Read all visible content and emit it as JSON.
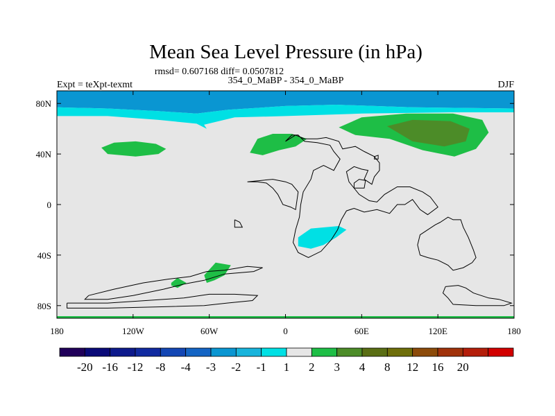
{
  "chart_data": {
    "type": "heatmap",
    "title": "Mean Sea Level Pressure (in hPa)",
    "stats_line": "rmsd= 0.607168 diff= 0.0507812",
    "subtitle_center": "354_0_MaBP - 354_0_MaBP",
    "subtitle_left": "Expt = teXpt-texmt",
    "subtitle_right": "DJF",
    "xlim": [
      -180,
      180
    ],
    "ylim": [
      -90,
      90
    ],
    "x_ticks": [
      {
        "value": -180,
        "label": "180"
      },
      {
        "value": -120,
        "label": "120W"
      },
      {
        "value": -60,
        "label": "60W"
      },
      {
        "value": 0,
        "label": "0"
      },
      {
        "value": 60,
        "label": "60E"
      },
      {
        "value": 120,
        "label": "120E"
      },
      {
        "value": 180,
        "label": "180"
      }
    ],
    "y_ticks": [
      {
        "value": 80,
        "label": "80N"
      },
      {
        "value": 40,
        "label": "40N"
      },
      {
        "value": 0,
        "label": "0"
      },
      {
        "value": -40,
        "label": "40S"
      },
      {
        "value": -80,
        "label": "80S"
      }
    ],
    "colorbar": {
      "colors": [
        "#20005a",
        "#0a0a78",
        "#0d1a8c",
        "#102aa0",
        "#1346b4",
        "#1464c4",
        "#0a96d2",
        "#18b4dc",
        "#00e0e4",
        "#e6e6e6",
        "#1ebe46",
        "#4c8c28",
        "#5a6e14",
        "#6e6e0a",
        "#8c4b0a",
        "#a0320a",
        "#b41e0a",
        "#d20000"
      ],
      "labels": [
        "-20",
        "-16",
        "-12",
        "-8",
        "-4",
        "-3",
        "-2",
        "-1",
        "1",
        "2",
        "3",
        "4",
        "8",
        "12",
        "16",
        "20"
      ]
    },
    "background_color": "#e6e6e6",
    "anomaly_regions": [
      {
        "color": "#0a96d2",
        "points": [
          [
            -180,
            90
          ],
          [
            180,
            90
          ],
          [
            180,
            76
          ],
          [
            100,
            77
          ],
          [
            40,
            79
          ],
          [
            0,
            78
          ],
          [
            -45,
            75
          ],
          [
            -70,
            72
          ],
          [
            -100,
            74
          ],
          [
            -140,
            76
          ],
          [
            -180,
            77
          ]
        ]
      },
      {
        "color": "#00e0e4",
        "points": [
          [
            -180,
            77
          ],
          [
            -140,
            76
          ],
          [
            -100,
            74
          ],
          [
            -70,
            72
          ],
          [
            -62,
            60
          ],
          [
            -70,
            64
          ],
          [
            -100,
            67
          ],
          [
            -140,
            70
          ],
          [
            -180,
            70
          ]
        ]
      },
      {
        "color": "#00e0e4",
        "points": [
          [
            -70,
            72
          ],
          [
            -45,
            75
          ],
          [
            0,
            78
          ],
          [
            40,
            79
          ],
          [
            100,
            77
          ],
          [
            180,
            76
          ],
          [
            180,
            73
          ],
          [
            130,
            73
          ],
          [
            60,
            72
          ],
          [
            0,
            70
          ],
          [
            -40,
            69
          ],
          [
            -65,
            63
          ]
        ]
      },
      {
        "color": "#1ebe46",
        "points": [
          [
            -145,
            45
          ],
          [
            -135,
            49
          ],
          [
            -118,
            50
          ],
          [
            -102,
            48
          ],
          [
            -94,
            44
          ],
          [
            -100,
            40
          ],
          [
            -118,
            38
          ],
          [
            -140,
            40
          ]
        ]
      },
      {
        "color": "#1ebe46",
        "points": [
          [
            -28,
            41
          ],
          [
            -22,
            52
          ],
          [
            -10,
            56
          ],
          [
            5,
            56
          ],
          [
            17,
            52
          ],
          [
            8,
            46
          ],
          [
            -5,
            43
          ],
          [
            -18,
            39
          ]
        ]
      },
      {
        "color": "#1ebe46",
        "points": [
          [
            42,
            61
          ],
          [
            60,
            69
          ],
          [
            95,
            72
          ],
          [
            132,
            72
          ],
          [
            155,
            67
          ],
          [
            160,
            57
          ],
          [
            150,
            44
          ],
          [
            133,
            38
          ],
          [
            108,
            43
          ],
          [
            82,
            52
          ],
          [
            55,
            55
          ]
        ]
      },
      {
        "color": "#4c8c28",
        "points": [
          [
            80,
            62
          ],
          [
            100,
            67
          ],
          [
            130,
            66
          ],
          [
            145,
            60
          ],
          [
            142,
            50
          ],
          [
            125,
            46
          ],
          [
            100,
            50
          ]
        ]
      },
      {
        "color": "#00e0e4",
        "points": [
          [
            10,
            -26
          ],
          [
            20,
            -19
          ],
          [
            42,
            -17
          ],
          [
            48,
            -20
          ],
          [
            40,
            -26
          ],
          [
            30,
            -32
          ],
          [
            20,
            -35
          ],
          [
            10,
            -33
          ]
        ]
      },
      {
        "color": "#1ebe46",
        "points": [
          [
            -90,
            -62
          ],
          [
            -85,
            -58
          ],
          [
            -78,
            -62
          ],
          [
            -85,
            -66
          ],
          [
            -90,
            -64
          ]
        ]
      },
      {
        "color": "#1ebe46",
        "points": [
          [
            -64,
            -56
          ],
          [
            -55,
            -46
          ],
          [
            -43,
            -48
          ],
          [
            -48,
            -56
          ],
          [
            -56,
            -60
          ],
          [
            -62,
            -62
          ]
        ]
      }
    ],
    "outline_segments": [
      [
        [
          -155,
          -72
        ],
        [
          -135,
          -67
        ],
        [
          -112,
          -62
        ],
        [
          -92,
          -59
        ],
        [
          -75,
          -57
        ],
        [
          -62,
          -53
        ],
        [
          -48,
          -52
        ],
        [
          -30,
          -49
        ],
        [
          -18,
          -50
        ],
        [
          -25,
          -53
        ],
        [
          -48,
          -55
        ],
        [
          -64,
          -60
        ],
        [
          -80,
          -63
        ],
        [
          -96,
          -67
        ],
        [
          -120,
          -72
        ],
        [
          -140,
          -75
        ],
        [
          -158,
          -75
        ],
        [
          -155,
          -72
        ]
      ],
      [
        [
          -172,
          -78
        ],
        [
          -140,
          -78
        ],
        [
          -110,
          -76
        ],
        [
          -80,
          -74
        ],
        [
          -60,
          -71
        ],
        [
          -40,
          -71
        ],
        [
          -22,
          -72
        ],
        [
          -26,
          -76
        ],
        [
          -46,
          -78
        ],
        [
          -64,
          -80
        ],
        [
          -100,
          -81
        ],
        [
          -140,
          -82
        ],
        [
          -172,
          -82
        ],
        [
          -172,
          -78
        ]
      ],
      [
        [
          -30,
          18
        ],
        [
          -22,
          18
        ],
        [
          -15,
          17
        ],
        [
          -10,
          13
        ],
        [
          -6,
          8
        ],
        [
          -2,
          0
        ],
        [
          4,
          -2
        ],
        [
          8,
          -4
        ],
        [
          10,
          10
        ],
        [
          5,
          16
        ],
        [
          0,
          18
        ],
        [
          -10,
          20
        ],
        [
          -30,
          18
        ]
      ],
      [
        [
          0,
          50
        ],
        [
          5,
          55
        ],
        [
          10,
          55
        ],
        [
          15,
          50
        ],
        [
          25,
          49
        ],
        [
          35,
          47
        ],
        [
          38,
          42
        ],
        [
          43,
          36
        ],
        [
          38,
          27
        ],
        [
          30,
          31
        ],
        [
          22,
          27
        ],
        [
          20,
          20
        ],
        [
          14,
          10
        ],
        [
          12,
          0
        ],
        [
          11,
          -10
        ],
        [
          8,
          -20
        ],
        [
          6,
          -30
        ],
        [
          10,
          -38
        ],
        [
          18,
          -42
        ],
        [
          28,
          -37
        ],
        [
          36,
          -28
        ],
        [
          41,
          -20
        ],
        [
          44,
          -12
        ],
        [
          48,
          -5
        ],
        [
          54,
          -3
        ],
        [
          62,
          -6
        ],
        [
          72,
          -4
        ],
        [
          82,
          -7
        ],
        [
          88,
          0
        ],
        [
          94,
          0
        ],
        [
          100,
          4
        ],
        [
          106,
          -4
        ],
        [
          112,
          -8
        ],
        [
          120,
          -2
        ],
        [
          114,
          6
        ],
        [
          108,
          10
        ],
        [
          98,
          14
        ],
        [
          88,
          14
        ],
        [
          78,
          8
        ],
        [
          72,
          2
        ],
        [
          66,
          3
        ],
        [
          58,
          8
        ],
        [
          50,
          18
        ],
        [
          48,
          26
        ],
        [
          54,
          30
        ],
        [
          60,
          28
        ],
        [
          65,
          27
        ],
        [
          62,
          20
        ],
        [
          68,
          16
        ],
        [
          70,
          22
        ],
        [
          74,
          27
        ],
        [
          74,
          33
        ],
        [
          70,
          38
        ],
        [
          62,
          42
        ],
        [
          55,
          46
        ],
        [
          45,
          44
        ],
        [
          42,
          50
        ],
        [
          32,
          53
        ],
        [
          25,
          52
        ],
        [
          15,
          52
        ],
        [
          8,
          55
        ],
        [
          0,
          50
        ]
      ],
      [
        [
          54,
          13
        ],
        [
          62,
          13
        ],
        [
          63,
          19
        ],
        [
          58,
          20
        ],
        [
          54,
          17
        ],
        [
          54,
          13
        ]
      ],
      [
        [
          70,
          38
        ],
        [
          73,
          39
        ],
        [
          73,
          36
        ],
        [
          70,
          36
        ],
        [
          70,
          38
        ]
      ],
      [
        [
          122,
          -14
        ],
        [
          128,
          -10
        ],
        [
          132,
          -12
        ],
        [
          138,
          -12
        ],
        [
          140,
          -18
        ],
        [
          144,
          -26
        ],
        [
          148,
          -36
        ],
        [
          150,
          -42
        ],
        [
          147,
          -46
        ],
        [
          140,
          -50
        ],
        [
          132,
          -52
        ],
        [
          128,
          -48
        ],
        [
          120,
          -44
        ],
        [
          112,
          -42
        ],
        [
          106,
          -40
        ],
        [
          104,
          -32
        ],
        [
          106,
          -24
        ],
        [
          112,
          -20
        ],
        [
          118,
          -16
        ],
        [
          122,
          -14
        ]
      ],
      [
        [
          126,
          -65
        ],
        [
          136,
          -64
        ],
        [
          142,
          -66
        ],
        [
          148,
          -70
        ],
        [
          154,
          -72
        ],
        [
          160,
          -74
        ],
        [
          168,
          -75
        ],
        [
          178,
          -78
        ],
        [
          172,
          -80
        ],
        [
          150,
          -80
        ],
        [
          132,
          -79
        ],
        [
          128,
          -74
        ],
        [
          124,
          -70
        ],
        [
          126,
          -65
        ]
      ],
      [
        [
          -40,
          -12
        ],
        [
          -36,
          -14
        ],
        [
          -34,
          -18
        ],
        [
          -40,
          -18
        ],
        [
          -40,
          -12
        ]
      ]
    ]
  }
}
